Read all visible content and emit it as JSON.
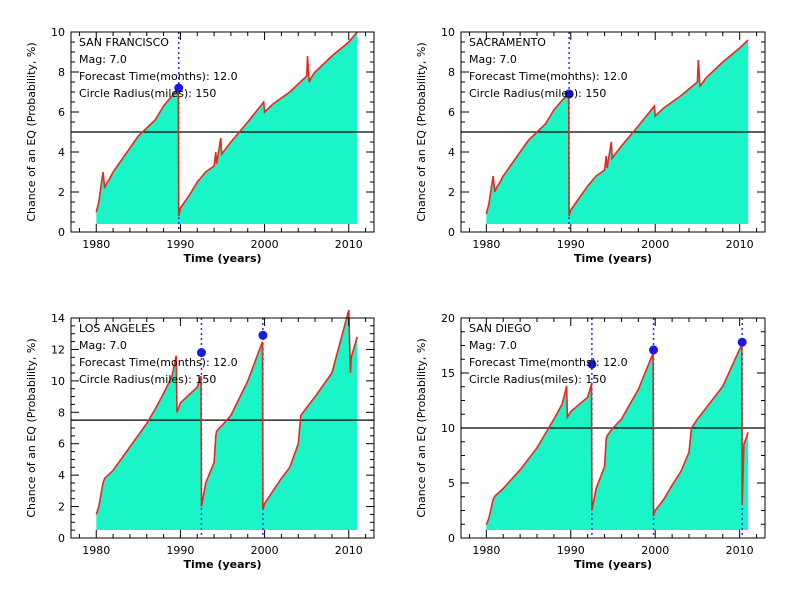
{
  "chart_data": [
    {
      "type": "area",
      "title": "SAN FRANCISCO",
      "annotations": [
        "Mag: 7.0",
        "Forecast Time(months): 12.0",
        "Circle Radius(miles): 150"
      ],
      "xlabel": "Time (years)",
      "ylabel": "Chance of an EQ (Probability, %)",
      "xlim": [
        1977,
        2013
      ],
      "ylim": [
        0,
        10
      ],
      "x_ticks": [
        1980,
        1990,
        2000,
        2010
      ],
      "y_ticks": [
        0,
        2,
        4,
        6,
        8,
        10
      ],
      "threshold": 5,
      "events": [
        {
          "x": 1989.8,
          "y": 7.2
        }
      ],
      "fill_color": "#1AF5C8",
      "line_color": "#E8281E",
      "event_line_color": "#2E2EE8",
      "event_marker_color": "#1A1AE6",
      "x": [
        1980.0,
        1980.3,
        1980.8,
        1981.0,
        1981.3,
        1981.5,
        1982,
        1984,
        1985,
        1986,
        1987,
        1988,
        1989,
        1989.75,
        1989.8,
        1990,
        1991,
        1992,
        1993,
        1994,
        1994.2,
        1994.3,
        1994.8,
        1994.9,
        1996,
        1998,
        1999.9,
        2000.0,
        2001,
        2003,
        2005.0,
        2005.1,
        2005.3,
        2005.5,
        2006,
        2008,
        2010,
        2011.0
      ],
      "y": [
        1.0,
        1.5,
        3.0,
        2.2,
        2.5,
        2.6,
        3.0,
        4.2,
        4.8,
        5.2,
        5.6,
        6.3,
        6.8,
        7.2,
        0.8,
        1.2,
        1.8,
        2.5,
        3.0,
        3.3,
        4.0,
        3.4,
        4.7,
        3.9,
        4.5,
        5.5,
        6.5,
        6.0,
        6.4,
        7.0,
        7.8,
        8.8,
        7.5,
        7.7,
        8.0,
        8.8,
        9.5,
        10.0
      ]
    },
    {
      "type": "area",
      "title": "SACRAMENTO",
      "annotations": [
        "Mag: 7.0",
        "Forecast Time(months): 12.0",
        "Circle Radius(miles): 150"
      ],
      "xlabel": "Time (years)",
      "ylabel": "Chance of an EQ (Probability, %)",
      "xlim": [
        1977,
        2013
      ],
      "ylim": [
        0,
        10
      ],
      "x_ticks": [
        1980,
        1990,
        2000,
        2010
      ],
      "y_ticks": [
        0,
        2,
        4,
        6,
        8,
        10
      ],
      "threshold": 5,
      "events": [
        {
          "x": 1989.8,
          "y": 6.9
        }
      ],
      "fill_color": "#1AF5C8",
      "line_color": "#E8281E",
      "event_line_color": "#2E2EE8",
      "event_marker_color": "#1A1AE6",
      "x": [
        1980.0,
        1980.3,
        1980.8,
        1981.0,
        1981.3,
        1981.5,
        1982,
        1984,
        1985,
        1986,
        1987,
        1988,
        1989,
        1989.75,
        1989.8,
        1990,
        1991,
        1992,
        1993,
        1994,
        1994.2,
        1994.3,
        1994.8,
        1994.9,
        1996,
        1998,
        1999.9,
        2000.0,
        2001,
        2003,
        2005.0,
        2005.1,
        2005.3,
        2005.5,
        2006,
        2008,
        2010,
        2011.0
      ],
      "y": [
        0.9,
        1.4,
        2.8,
        2.0,
        2.3,
        2.4,
        2.8,
        4.0,
        4.6,
        5.0,
        5.4,
        6.1,
        6.6,
        6.9,
        0.8,
        1.1,
        1.7,
        2.3,
        2.8,
        3.1,
        3.8,
        3.2,
        4.5,
        3.7,
        4.3,
        5.3,
        6.3,
        5.8,
        6.2,
        6.8,
        7.5,
        8.6,
        7.3,
        7.4,
        7.7,
        8.5,
        9.2,
        9.6
      ]
    },
    {
      "type": "area",
      "title": "LOS ANGELES",
      "annotations": [
        "Mag: 7.0",
        "Forecast Time(months): 12.0",
        "Circle Radius(miles): 150"
      ],
      "xlabel": "Time (years)",
      "ylabel": "Chance of an EQ (Probability, %)",
      "xlim": [
        1977,
        2013
      ],
      "ylim": [
        0,
        14
      ],
      "x_ticks": [
        1980,
        1990,
        2000,
        2010
      ],
      "y_ticks": [
        0,
        2,
        4,
        6,
        8,
        10,
        12,
        14
      ],
      "threshold": 7.5,
      "events": [
        {
          "x": 1992.5,
          "y": 11.8
        },
        {
          "x": 1999.8,
          "y": 12.9
        }
      ],
      "fill_color": "#1AF5C8",
      "line_color": "#E8281E",
      "event_line_color": "#2E2EE8",
      "event_marker_color": "#1A1AE6",
      "x": [
        1980.0,
        1980.3,
        1980.8,
        1981.0,
        1982,
        1984,
        1986,
        1987,
        1988,
        1989,
        1989.5,
        1989.6,
        1990,
        1992,
        1992.45,
        1992.5,
        1993,
        1994,
        1994.2,
        1994.3,
        1995,
        1996,
        1998,
        1999.75,
        1999.8,
        2000.0,
        2001,
        2002,
        2003,
        2004,
        2004.3,
        2005,
        2006,
        2008,
        2010.0,
        2010.2,
        2010.3,
        2011.0
      ],
      "y": [
        1.5,
        2.0,
        3.5,
        3.8,
        4.3,
        5.8,
        7.3,
        8.2,
        9.2,
        10.3,
        11.6,
        8.0,
        8.6,
        9.6,
        10.3,
        2.0,
        3.5,
        4.8,
        6.5,
        6.8,
        7.2,
        7.8,
        10.0,
        12.5,
        1.8,
        2.2,
        3.0,
        3.8,
        4.5,
        6.0,
        7.8,
        8.3,
        9.0,
        10.5,
        14.5,
        10.5,
        11.5,
        12.8
      ]
    },
    {
      "type": "area",
      "title": "SAN DIEGO",
      "annotations": [
        "Mag: 7.0",
        "Forecast Time(months): 12.0",
        "Circle Radius(miles): 150"
      ],
      "xlabel": "Time (years)",
      "ylabel": "Chance of an EQ (Probability, %)",
      "xlim": [
        1977,
        2013
      ],
      "ylim": [
        0,
        20
      ],
      "x_ticks": [
        1980,
        1990,
        2000,
        2010
      ],
      "y_ticks": [
        0,
        5,
        10,
        15,
        20
      ],
      "threshold": 10,
      "events": [
        {
          "x": 1992.5,
          "y": 15.8
        },
        {
          "x": 1999.8,
          "y": 17.1
        },
        {
          "x": 2010.3,
          "y": 17.8
        }
      ],
      "fill_color": "#1AF5C8",
      "line_color": "#E8281E",
      "event_line_color": "#2E2EE8",
      "event_marker_color": "#1A1AE6",
      "x": [
        1980.0,
        1980.3,
        1980.8,
        1981.0,
        1982,
        1984,
        1986,
        1987,
        1988,
        1989,
        1989.5,
        1989.6,
        1990,
        1992,
        1992.45,
        1992.5,
        1993,
        1994,
        1994.2,
        1994.3,
        1995,
        1996,
        1998,
        1999.75,
        1999.8,
        2000.0,
        2001,
        2002,
        2003,
        2004,
        2004.3,
        2005,
        2006,
        2008,
        2010.25,
        2010.3,
        2010.5,
        2011.0
      ],
      "y": [
        1.2,
        1.8,
        3.5,
        3.8,
        4.5,
        6.2,
        8.2,
        9.5,
        10.8,
        12.2,
        13.8,
        11.0,
        11.5,
        12.8,
        14.0,
        2.5,
        4.5,
        6.5,
        9.0,
        9.3,
        10.0,
        10.8,
        13.5,
        16.8,
        2.0,
        2.5,
        3.5,
        4.8,
        6.0,
        7.8,
        10.0,
        10.8,
        11.8,
        13.8,
        17.6,
        3.0,
        8.5,
        9.6
      ]
    }
  ]
}
